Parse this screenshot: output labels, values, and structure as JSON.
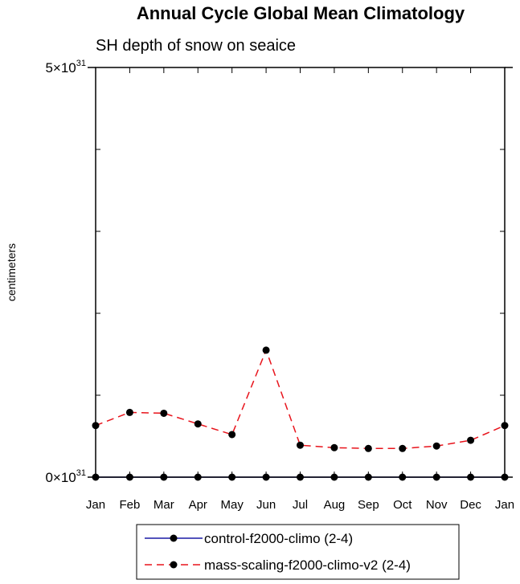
{
  "chart_data": {
    "type": "line",
    "title": "Annual Cycle Global Mean Climatology",
    "subtitle": "SH depth of snow on seaice",
    "ylabel": "centimeters",
    "xlabel": "",
    "ylim": [
      0,
      5e+31
    ],
    "y_tick_labels": [
      {
        "value": 0,
        "mantissa": "0",
        "base": "×10",
        "exp": "31"
      },
      {
        "value": 5e+31,
        "mantissa": "5",
        "base": "×10",
        "exp": "31"
      }
    ],
    "categories": [
      "Jan",
      "Feb",
      "Mar",
      "Apr",
      "May",
      "Jun",
      "Jul",
      "Aug",
      "Sep",
      "Oct",
      "Nov",
      "Dec",
      "Jan"
    ],
    "grid": false,
    "legend_position": "bottom",
    "series": [
      {
        "name": "control-f2000-climo (2-4)",
        "color": "#1a1aa6",
        "dash": "solid",
        "marker": "filled-circle",
        "values": [
          0,
          0,
          0,
          0,
          0,
          0,
          0,
          0,
          0,
          0,
          0,
          0,
          0
        ]
      },
      {
        "name": "mass-scaling-f2000-climo-v2 (2-4)",
        "color": "#e8141c",
        "dash": "dashed",
        "marker": "filled-circle",
        "values": [
          6.3e+30,
          7.9e+30,
          7.8e+30,
          6.5e+30,
          5.2e+30,
          1.55e+31,
          3.9e+30,
          3.6e+30,
          3.5e+30,
          3.5e+30,
          3.8e+30,
          4.5e+30,
          6.3e+30
        ]
      }
    ]
  }
}
